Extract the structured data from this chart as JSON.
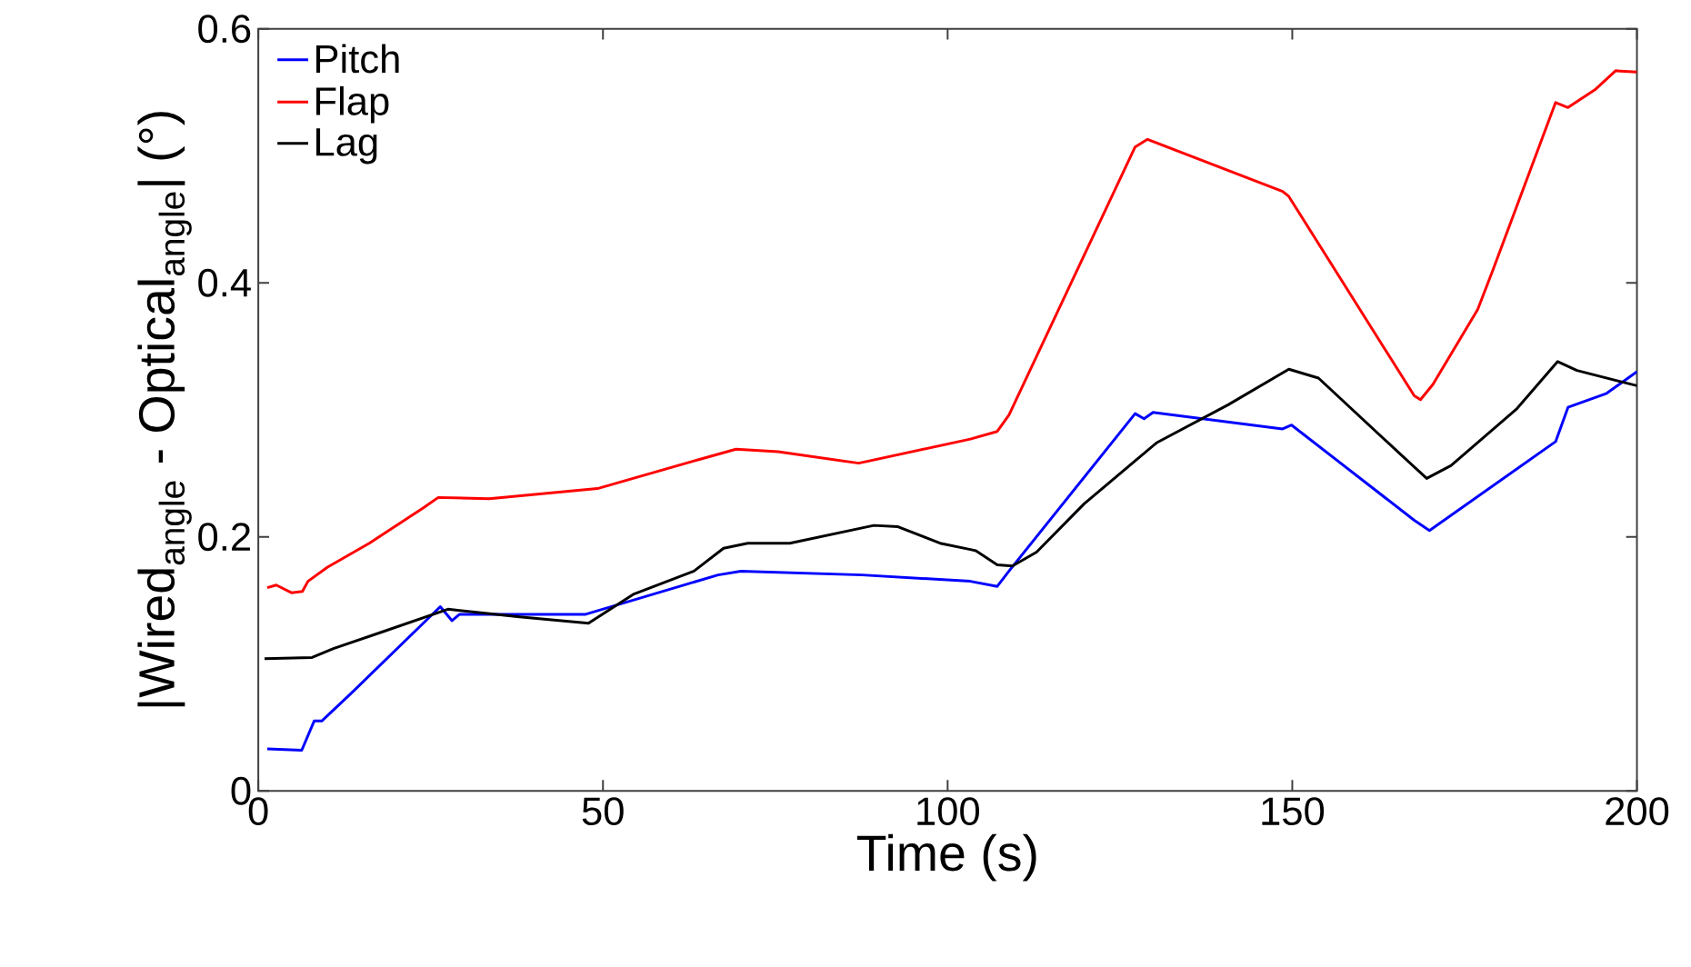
{
  "chart_data": {
    "type": "line",
    "xlabel": "Time (s)",
    "ylabel": "|Wired$_{angle}$ - Optical$_{angle}$| (°)",
    "xlim": [
      0,
      200
    ],
    "ylim": [
      0,
      0.6
    ],
    "xticks": [
      0,
      50,
      100,
      150,
      200
    ],
    "yticks": [
      0,
      0.2,
      0.4,
      0.6
    ],
    "legend": "top left",
    "grid": false,
    "line_style": "solid",
    "series": [
      {
        "name": "Pitch",
        "color": "#0000ff",
        "x": [
          1.3,
          6.3,
          8.1,
          9.2,
          13.5,
          26.4,
          28.1,
          29.2,
          47.5,
          66.7,
          70,
          87.6,
          103.3,
          107.2,
          108.9,
          127.2,
          128.5,
          129.8,
          148.6,
          149.9,
          167.7,
          169.9,
          188.2,
          190,
          195.6,
          200
        ],
        "values": [
          0.033,
          0.032,
          0.055,
          0.055,
          0.077,
          0.145,
          0.134,
          0.139,
          0.139,
          0.17,
          0.173,
          0.17,
          0.165,
          0.161,
          0.173,
          0.297,
          0.293,
          0.298,
          0.285,
          0.288,
          0.213,
          0.205,
          0.275,
          0.302,
          0.313,
          0.33
        ]
      },
      {
        "name": "Flap",
        "color": "#ff0000",
        "x": [
          1.3,
          2.6,
          4.8,
          6.4,
          7.2,
          10,
          16.1,
          24,
          26.1,
          33.5,
          49.2,
          64,
          69.3,
          75.4,
          87.1,
          103.3,
          107.2,
          108.9,
          127.2,
          129,
          148.6,
          149.5,
          167.7,
          168.6,
          170.4,
          176.9,
          179.1,
          188.2,
          190,
          193.9,
          196.9,
          200
        ],
        "values": [
          0.16,
          0.162,
          0.156,
          0.157,
          0.165,
          0.176,
          0.195,
          0.223,
          0.231,
          0.23,
          0.238,
          0.261,
          0.269,
          0.267,
          0.258,
          0.277,
          0.283,
          0.296,
          0.507,
          0.513,
          0.472,
          0.468,
          0.311,
          0.308,
          0.32,
          0.379,
          0.41,
          0.542,
          0.538,
          0.552,
          0.567,
          0.566
        ]
      },
      {
        "name": "Lag",
        "color": "#000000",
        "x": [
          0.9,
          7.8,
          10.9,
          17.9,
          27.5,
          37.9,
          47.9,
          54.5,
          63.2,
          67.5,
          71,
          77.1,
          89.3,
          92.8,
          98.9,
          103.3,
          104.1,
          107.2,
          109.4,
          112.9,
          119.8,
          130.3,
          140.7,
          149.5,
          153.8,
          165.1,
          169.5,
          173,
          182.6,
          188.5,
          191.3,
          200
        ],
        "values": [
          0.104,
          0.105,
          0.112,
          0.125,
          0.143,
          0.137,
          0.132,
          0.155,
          0.173,
          0.191,
          0.195,
          0.195,
          0.209,
          0.208,
          0.195,
          0.19,
          0.189,
          0.178,
          0.177,
          0.188,
          0.226,
          0.274,
          0.304,
          0.332,
          0.325,
          0.268,
          0.246,
          0.256,
          0.301,
          0.338,
          0.331,
          0.319
        ]
      }
    ]
  }
}
